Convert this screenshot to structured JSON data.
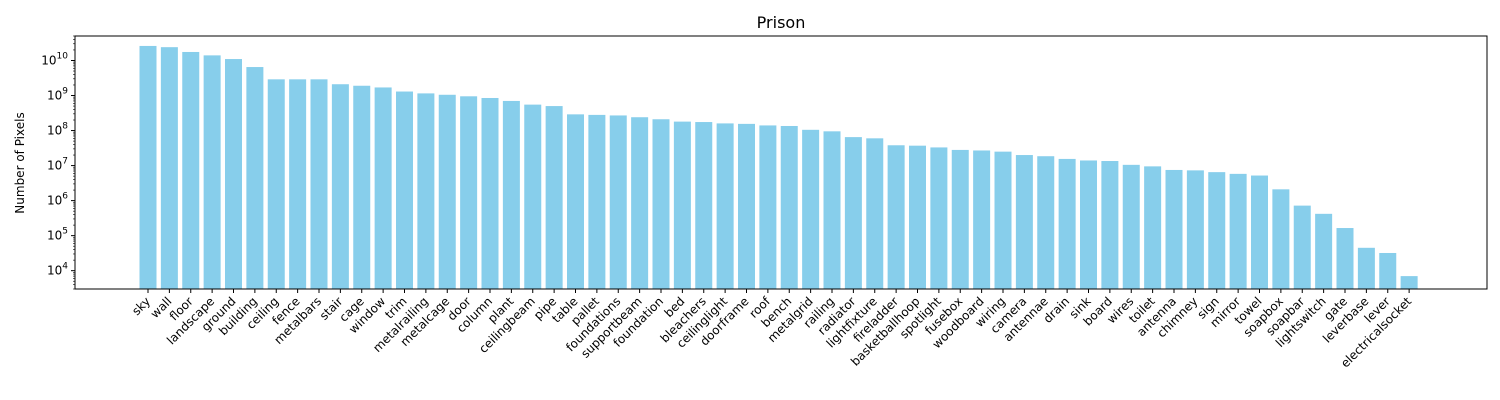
{
  "chart_data": {
    "type": "bar",
    "title": "Prison",
    "xlabel": "",
    "ylabel": "Number of Pixels",
    "yscale": "log",
    "ylim": [
      3000,
      50000000000
    ],
    "bar_color": "#87CEEB",
    "grid": false,
    "yticks": [
      {
        "value": 10000,
        "base": "10",
        "exp": "4"
      },
      {
        "value": 100000,
        "base": "10",
        "exp": "5"
      },
      {
        "value": 1000000,
        "base": "10",
        "exp": "6"
      },
      {
        "value": 10000000,
        "base": "10",
        "exp": "7"
      },
      {
        "value": 100000000,
        "base": "10",
        "exp": "8"
      },
      {
        "value": 1000000000,
        "base": "10",
        "exp": "9"
      },
      {
        "value": 10000000000,
        "base": "10",
        "exp": "10"
      }
    ],
    "categories": [
      "sky",
      "wall",
      "floor",
      "landscape",
      "ground",
      "building",
      "ceiling",
      "fence",
      "metalbars",
      "stair",
      "cage",
      "window",
      "trim",
      "metalrailing",
      "metalcage",
      "door",
      "column",
      "plant",
      "ceilingbeam",
      "pipe",
      "table",
      "pallet",
      "foundations",
      "supportbeam",
      "foundation",
      "bed",
      "bleachers",
      "ceilinglight",
      "doorframe",
      "roof",
      "bench",
      "metalgrid",
      "railing",
      "radiator",
      "lightfixture",
      "fireladder",
      "basketballhoop",
      "spotlight",
      "fusebox",
      "woodboard",
      "wiring",
      "camera",
      "antennae",
      "drain",
      "sink",
      "board",
      "wires",
      "toilet",
      "antenna",
      "chimney",
      "sign",
      "mirror",
      "towel",
      "soapbox",
      "soapbar",
      "lightswitch",
      "gate",
      "leverbase",
      "lever",
      "electricalsocket"
    ],
    "values": [
      26000000000,
      24000000000,
      17500000000,
      14000000000,
      11000000000,
      6500000000,
      2900000000,
      2900000000,
      2900000000,
      2100000000,
      1900000000,
      1700000000,
      1300000000,
      1150000000,
      1050000000,
      950000000,
      850000000,
      700000000,
      550000000,
      500000000,
      290000000,
      280000000,
      270000000,
      240000000,
      210000000,
      180000000,
      175000000,
      160000000,
      155000000,
      140000000,
      135000000,
      105000000,
      95000000,
      65000000,
      60000000,
      38000000,
      37000000,
      33000000,
      28000000,
      27000000,
      25000000,
      20000000,
      18500000,
      15500000,
      14000000,
      13500000,
      10500000,
      9500000,
      7500000,
      7300000,
      6500000,
      5800000,
      5200000,
      2100000,
      720000,
      420000,
      165000,
      45000,
      32000,
      7000
    ]
  }
}
